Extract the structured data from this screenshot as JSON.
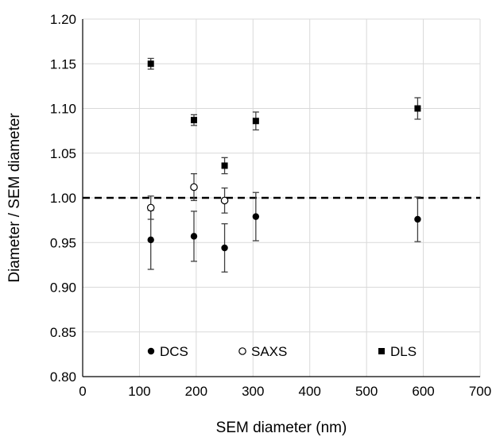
{
  "chart_data": {
    "type": "scatter",
    "xlabel": "SEM diameter (nm)",
    "ylabel": "Diameter / SEM diameter",
    "xlim": [
      0,
      700
    ],
    "ylim": [
      0.8,
      1.2
    ],
    "x_ticks": [
      0,
      100,
      200,
      300,
      400,
      500,
      600,
      700
    ],
    "y_ticks": [
      0.8,
      0.85,
      0.9,
      0.95,
      1.0,
      1.05,
      1.1,
      1.15,
      1.2
    ],
    "x_tick_labels": [
      "0",
      "100",
      "200",
      "300",
      "400",
      "500",
      "600",
      "700"
    ],
    "y_tick_labels": [
      "0.80",
      "0.85",
      "0.90",
      "0.95",
      "1.00",
      "1.05",
      "1.10",
      "1.15",
      "1.20"
    ],
    "grid": "both",
    "legend": "bottom-inside",
    "reference_line": {
      "y": 1.0,
      "style": "dashed"
    },
    "series": [
      {
        "name": "DCS",
        "marker": "filled-circle",
        "points": [
          {
            "x": 120,
            "y": 0.953,
            "err": 0.033
          },
          {
            "x": 196,
            "y": 0.957,
            "err": 0.028
          },
          {
            "x": 250,
            "y": 0.944,
            "err": 0.027
          },
          {
            "x": 305,
            "y": 0.979,
            "err": 0.027
          },
          {
            "x": 590,
            "y": 0.976,
            "err": 0.025
          }
        ]
      },
      {
        "name": "SAXS",
        "marker": "open-circle",
        "points": [
          {
            "x": 120,
            "y": 0.989,
            "err": 0.013
          },
          {
            "x": 196,
            "y": 1.012,
            "err": 0.015
          },
          {
            "x": 250,
            "y": 0.997,
            "err": 0.014
          }
        ]
      },
      {
        "name": "DLS",
        "marker": "filled-square",
        "points": [
          {
            "x": 120,
            "y": 1.15,
            "err": 0.006
          },
          {
            "x": 196,
            "y": 1.087,
            "err": 0.006
          },
          {
            "x": 250,
            "y": 1.036,
            "err": 0.009
          },
          {
            "x": 305,
            "y": 1.086,
            "err": 0.01
          },
          {
            "x": 590,
            "y": 1.1,
            "err": 0.012
          }
        ]
      }
    ]
  }
}
